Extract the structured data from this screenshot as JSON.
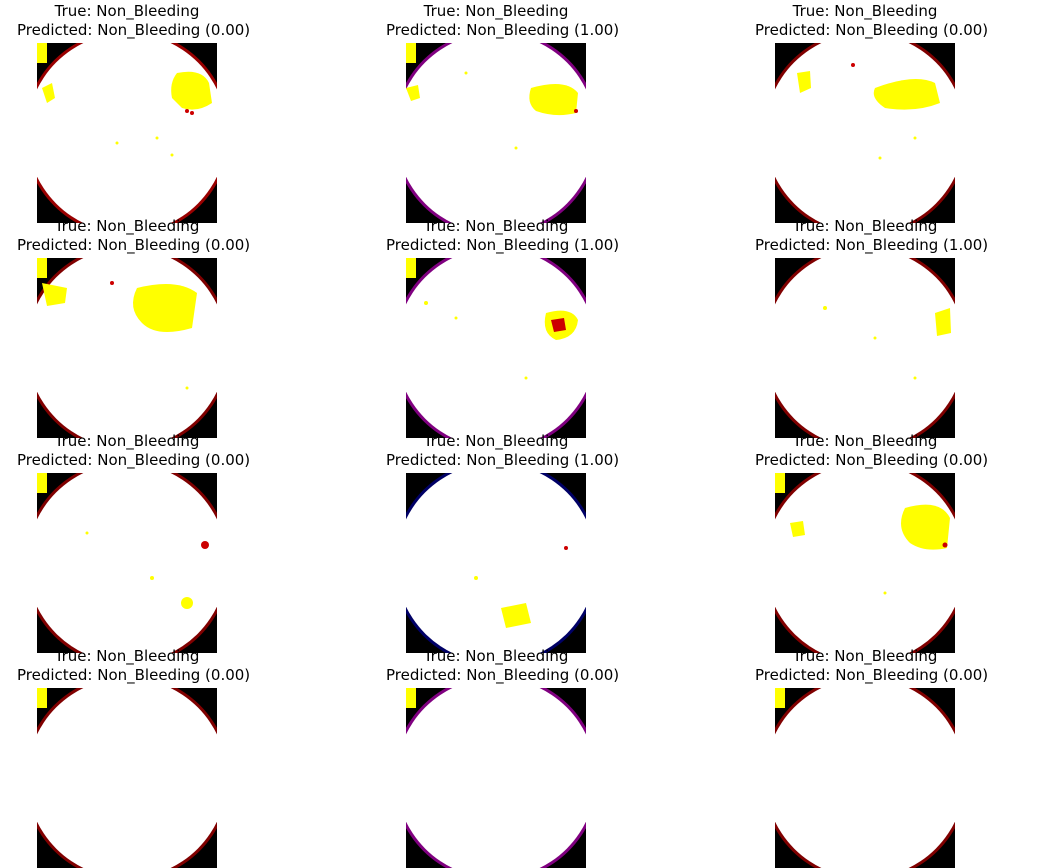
{
  "grid": {
    "rows": 4,
    "cols": 3
  },
  "panels": [
    {
      "true_label": "True: Non_Bleeding",
      "predicted_label": "Predicted: Non_Bleeding (0.00)",
      "pattern": "blob-top-right"
    },
    {
      "true_label": "True: Non_Bleeding",
      "predicted_label": "Predicted: Non_Bleeding (1.00)",
      "pattern": "blob-right"
    },
    {
      "true_label": "True: Non_Bleeding",
      "predicted_label": "Predicted: Non_Bleeding (0.00)",
      "pattern": "blob-center-right"
    },
    {
      "true_label": "True: Non_Bleeding",
      "predicted_label": "Predicted: Non_Bleeding (0.00)",
      "pattern": "blob-upper-wide"
    },
    {
      "true_label": "True: Non_Bleeding",
      "predicted_label": "Predicted: Non_Bleeding (1.00)",
      "pattern": "blob-red-right"
    },
    {
      "true_label": "True: Non_Bleeding",
      "predicted_label": "Predicted: Non_Bleeding (1.00)",
      "pattern": "blob-small-right"
    },
    {
      "true_label": "True: Non_Bleeding",
      "predicted_label": "Predicted: Non_Bleeding (0.00)",
      "pattern": "speckles"
    },
    {
      "true_label": "True: Non_Bleeding",
      "predicted_label": "Predicted: Non_Bleeding (1.00)",
      "pattern": "light-bottom"
    },
    {
      "true_label": "True: Non_Bleeding",
      "predicted_label": "Predicted: Non_Bleeding (0.00)",
      "pattern": "blob-big-right"
    },
    {
      "true_label": "True: Non_Bleeding",
      "predicted_label": "Predicted: Non_Bleeding (0.00)",
      "pattern": "cropped"
    },
    {
      "true_label": "True: Non_Bleeding",
      "predicted_label": "Predicted: Non_Bleeding (0.00)",
      "pattern": "cropped"
    },
    {
      "true_label": "True: Non_Bleeding",
      "predicted_label": "Predicted: Non_Bleeding (0.00)",
      "pattern": "cropped"
    }
  ],
  "colors": {
    "background": "#ffffff",
    "frame": "#000000",
    "disc": "#ffffff",
    "highlight": "#ffff00",
    "lesion": "#cc0000",
    "edge_magenta": "#ff00ff",
    "edge_blue": "#0000ff"
  }
}
